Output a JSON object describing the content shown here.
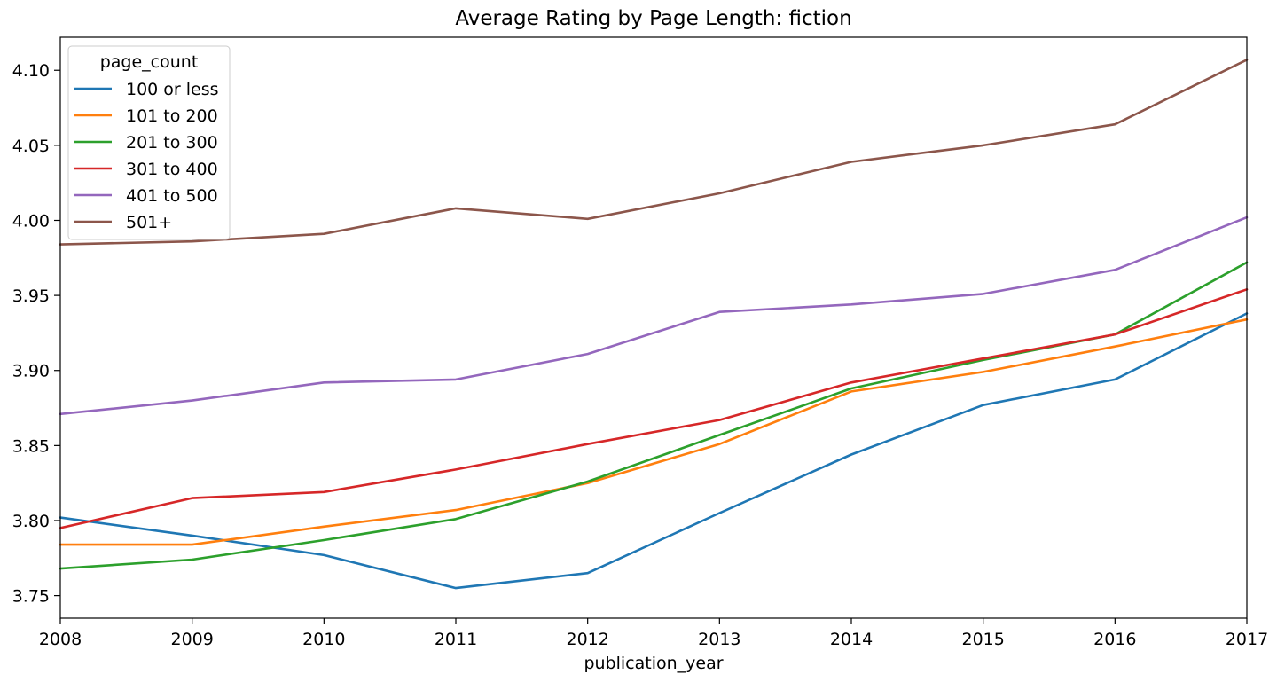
{
  "chart_data": {
    "type": "line",
    "title": "Average Rating by Page Length: fiction",
    "xlabel": "publication_year",
    "ylabel": "",
    "x": [
      2008,
      2009,
      2010,
      2011,
      2012,
      2013,
      2014,
      2015,
      2016,
      2017
    ],
    "xlim": [
      2008,
      2017
    ],
    "ylim": [
      3.735,
      4.122
    ],
    "yticks": [
      "3.75",
      "3.80",
      "3.85",
      "3.90",
      "3.95",
      "4.00",
      "4.05",
      "4.10"
    ],
    "yticks_values": [
      3.75,
      3.8,
      3.85,
      3.9,
      3.95,
      4.0,
      4.05,
      4.1
    ],
    "grid": false,
    "legend": {
      "title": "page_count",
      "position": "top-left"
    },
    "series": [
      {
        "name": "100 or less",
        "color": "#1f77b4",
        "values": [
          3.802,
          3.79,
          3.777,
          3.755,
          3.765,
          3.805,
          3.844,
          3.877,
          3.894,
          3.938
        ]
      },
      {
        "name": "101 to 200",
        "color": "#ff7f0e",
        "values": [
          3.784,
          3.784,
          3.796,
          3.807,
          3.825,
          3.851,
          3.886,
          3.899,
          3.916,
          3.934
        ]
      },
      {
        "name": "201 to 300",
        "color": "#2ca02c",
        "values": [
          3.768,
          3.774,
          3.787,
          3.801,
          3.826,
          3.857,
          3.888,
          3.907,
          3.924,
          3.972
        ]
      },
      {
        "name": "301 to 400",
        "color": "#d62728",
        "values": [
          3.795,
          3.815,
          3.819,
          3.834,
          3.851,
          3.867,
          3.892,
          3.908,
          3.924,
          3.954
        ]
      },
      {
        "name": "401 to 500",
        "color": "#9467bd",
        "values": [
          3.871,
          3.88,
          3.892,
          3.894,
          3.911,
          3.939,
          3.944,
          3.951,
          3.967,
          4.002
        ]
      },
      {
        "name": "501+",
        "color": "#8c564b",
        "values": [
          3.984,
          3.986,
          3.991,
          4.008,
          4.001,
          4.018,
          4.039,
          4.05,
          4.064,
          4.107
        ]
      }
    ]
  }
}
